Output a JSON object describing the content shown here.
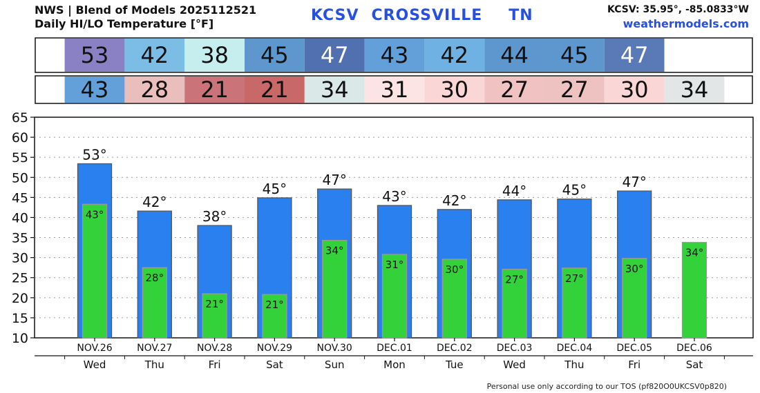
{
  "header": {
    "line1": "NWS | Blend of Models 2025112521",
    "line2": "Daily HI/LO Temperature [°F]",
    "station": "KCSV",
    "city": "CROSSVILLE",
    "state": "TN",
    "coords": "KCSV: 35.95°, -85.0833°W",
    "site": "weathermodels.com"
  },
  "footer": "Personal use only according to our TOS (pf820O0UKCSV0p820)",
  "colors": {
    "high_bar": "#2a80ee",
    "low_bar": "#33d13a"
  },
  "chart_data": {
    "type": "bar",
    "categories": [
      "NOV.26",
      "NOV.27",
      "NOV.28",
      "NOV.29",
      "NOV.30",
      "DEC.01",
      "DEC.02",
      "DEC.03",
      "DEC.04",
      "DEC.05",
      "DEC.06"
    ],
    "weekdays": [
      "Wed",
      "Thu",
      "Fri",
      "Sat",
      "Sun",
      "Mon",
      "Tue",
      "Wed",
      "Thu",
      "Fri",
      "Sat"
    ],
    "series": [
      {
        "values": [
          53.4,
          41.6,
          38.0,
          44.9,
          47.1,
          43.0,
          42.0,
          44.4,
          44.6,
          46.6,
          null
        ],
        "labels": [
          "53°",
          "42°",
          "38°",
          "45°",
          "47°",
          "43°",
          "42°",
          "44°",
          "45°",
          "47°",
          ""
        ],
        "table_values": [
          "53",
          "42",
          "38",
          "45",
          "47",
          "43",
          "42",
          "44",
          "45",
          "47",
          ""
        ],
        "table_colors": [
          "#8a81c4",
          "#7cbde6",
          "#c6eeee",
          "#5d97cd",
          "#5170b0",
          "#639fd8",
          "#6fb1e2",
          "#5d97cd",
          "#5e97cd",
          "#5a7ab7",
          "#ffffff"
        ]
      },
      {
        "values": [
          43.3,
          27.5,
          21.0,
          20.8,
          34.3,
          30.8,
          29.6,
          27.1,
          27.4,
          29.8,
          33.8
        ],
        "labels": [
          "43°",
          "28°",
          "21°",
          "21°",
          "34°",
          "31°",
          "30°",
          "27°",
          "27°",
          "30°",
          "34°"
        ],
        "table_values": [
          "43",
          "28",
          "21",
          "21",
          "34",
          "31",
          "30",
          "27",
          "27",
          "30",
          "34"
        ],
        "table_colors": [
          "#639fd8",
          "#ebbebe",
          "#ca7378",
          "#c86869",
          "#dbe8e8",
          "#fde4e4",
          "#fad6d6",
          "#f0c2c2",
          "#efc2c2",
          "#fad6d6",
          "#e2e6e6"
        ]
      }
    ],
    "ylim": [
      10,
      65
    ],
    "yticks": [
      10,
      15,
      20,
      25,
      30,
      35,
      40,
      45,
      50,
      55,
      60,
      65
    ],
    "grid": true
  }
}
